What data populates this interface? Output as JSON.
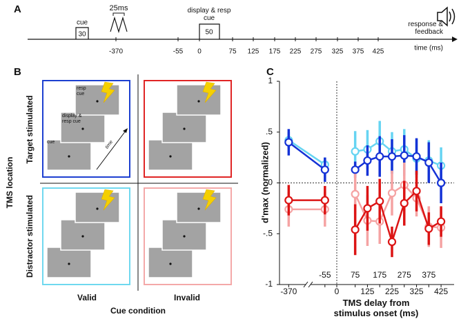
{
  "panel_labels": [
    "A",
    "B",
    "C"
  ],
  "timeline": {
    "cue_label": "cue",
    "cue_duration": 30,
    "tms_label": "25ms",
    "display_label": "display & resp cue",
    "display_duration": 50,
    "response_label": "response & feedback",
    "axis_label": "time (ms)",
    "ticks": [
      -370,
      -55,
      0,
      75,
      125,
      175,
      225,
      275,
      325,
      375,
      425
    ]
  },
  "design": {
    "row_axis_label": "TMS location",
    "rows": [
      "Target stimulated",
      "Distractor stimulated"
    ],
    "col_axis_label": "Cue condition",
    "columns": [
      "Valid",
      "Invalid"
    ],
    "screen_labels": [
      "cue",
      "display & resp cue",
      "resp cue"
    ],
    "time_label": "time",
    "frame_colors": [
      [
        "#1c3fd0",
        "#e02424"
      ],
      [
        "#6fd8ef",
        "#f4a8a8"
      ]
    ]
  },
  "chart_data": {
    "type": "line",
    "ylabel": "d'max (normalized)",
    "xlabel": "TMS delay from stimulus onset (ms)",
    "x": [
      -370,
      -55,
      75,
      125,
      175,
      225,
      275,
      325,
      375,
      425
    ],
    "series": [
      {
        "color": "#66d4f2",
        "values": [
          0.42,
          0.18,
          0.31,
          0.33,
          0.41,
          0.31,
          0.33,
          0.24,
          0.22,
          0.17
        ],
        "errors": [
          0.08,
          0.07,
          0.2,
          0.19,
          0.2,
          0.19,
          0.2,
          0.19,
          0.2,
          0.18
        ]
      },
      {
        "color": "#1432d6",
        "values": [
          0.4,
          0.13,
          0.13,
          0.22,
          0.26,
          0.26,
          0.27,
          0.26,
          0.2,
          0.0
        ],
        "errors": [
          0.13,
          0.12,
          0.08,
          0.15,
          0.2,
          0.17,
          0.2,
          0.18,
          0.2,
          0.2
        ]
      },
      {
        "color": "#f5a3a3",
        "values": [
          -0.26,
          -0.26,
          -0.11,
          -0.37,
          -0.38,
          -0.1,
          -0.02,
          -0.15,
          -0.43,
          -0.44
        ],
        "errors": [
          0.17,
          0.17,
          0.2,
          0.25,
          0.22,
          0.22,
          0.22,
          0.18,
          0.2,
          0.2
        ]
      },
      {
        "color": "#dc1414",
        "values": [
          -0.17,
          -0.17,
          -0.46,
          -0.25,
          -0.18,
          -0.58,
          -0.2,
          -0.08,
          -0.45,
          -0.38
        ],
        "errors": [
          0.15,
          0.14,
          0.25,
          0.22,
          0.22,
          0.15,
          0.22,
          0.2,
          0.16,
          0.15
        ]
      }
    ],
    "xlim": [
      -450,
      450
    ],
    "xticks": [
      -370,
      -55,
      0,
      75,
      125,
      175,
      225,
      275,
      325,
      375,
      425
    ],
    "ylim": [
      -1,
      1
    ],
    "yticks": [
      1,
      {
        "value": 0.5,
        "label": ".5"
      },
      0,
      {
        "value": -0.5,
        "label": "-.5"
      },
      -1
    ],
    "axis_break": true,
    "zero_lines": true
  }
}
